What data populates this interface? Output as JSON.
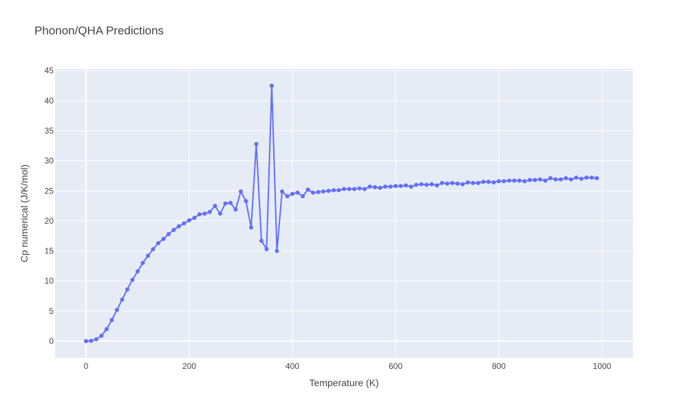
{
  "chart_data": {
    "type": "line",
    "title": "Phonon/QHA Predictions",
    "xlabel": "Temperature (K)",
    "ylabel": "Cp numerical (J/K/mol)",
    "xlim": [
      -60,
      1060
    ],
    "ylim": [
      -2.8,
      45.3
    ],
    "x_ticks": [
      0,
      200,
      400,
      600,
      800,
      1000
    ],
    "y_ticks": [
      0,
      5,
      10,
      15,
      20,
      25,
      30,
      35,
      40,
      45
    ],
    "grid": true,
    "mode": "lines+markers",
    "colors": {
      "series": "#636efa",
      "plot_bg": "#e5ecf6",
      "grid": "#ffffff",
      "paper_bg": "#ffffff"
    },
    "series": [
      {
        "x": [
          0,
          10,
          20,
          30,
          40,
          50,
          60,
          70,
          80,
          90,
          100,
          110,
          120,
          130,
          140,
          150,
          160,
          170,
          180,
          190,
          200,
          210,
          220,
          230,
          240,
          250,
          260,
          270,
          280,
          290,
          300,
          310,
          320,
          330,
          340,
          350,
          360,
          370,
          380,
          390,
          400,
          410,
          420,
          430,
          440,
          450,
          460,
          470,
          480,
          490,
          500,
          510,
          520,
          530,
          540,
          550,
          560,
          570,
          580,
          590,
          600,
          610,
          620,
          630,
          640,
          650,
          660,
          670,
          680,
          690,
          700,
          710,
          720,
          730,
          740,
          750,
          760,
          770,
          780,
          790,
          800,
          810,
          820,
          830,
          840,
          850,
          860,
          870,
          880,
          890,
          900,
          910,
          920,
          930,
          940,
          950,
          960,
          970,
          980,
          990
        ],
        "y": [
          0.0,
          0.05,
          0.3,
          0.9,
          2.0,
          3.5,
          5.2,
          6.9,
          8.6,
          10.2,
          11.6,
          13.0,
          14.2,
          15.3,
          16.3,
          17.0,
          17.8,
          18.5,
          19.1,
          19.6,
          20.1,
          20.5,
          21.1,
          21.2,
          21.5,
          22.5,
          21.2,
          22.9,
          23.0,
          21.9,
          24.9,
          23.3,
          18.9,
          32.8,
          16.7,
          15.3,
          42.5,
          15.0,
          24.9,
          24.1,
          24.5,
          24.7,
          24.1,
          25.2,
          24.7,
          24.8,
          24.9,
          25.0,
          25.1,
          25.1,
          25.3,
          25.3,
          25.3,
          25.4,
          25.3,
          25.7,
          25.6,
          25.5,
          25.7,
          25.7,
          25.8,
          25.8,
          25.9,
          25.7,
          26.0,
          26.1,
          26.0,
          26.1,
          25.9,
          26.3,
          26.2,
          26.3,
          26.2,
          26.1,
          26.4,
          26.3,
          26.3,
          26.5,
          26.5,
          26.4,
          26.6,
          26.6,
          26.7,
          26.7,
          26.7,
          26.6,
          26.8,
          26.8,
          26.9,
          26.7,
          27.1,
          26.9,
          26.9,
          27.1,
          26.9,
          27.2,
          27.0,
          27.2,
          27.2,
          27.1
        ]
      }
    ]
  }
}
